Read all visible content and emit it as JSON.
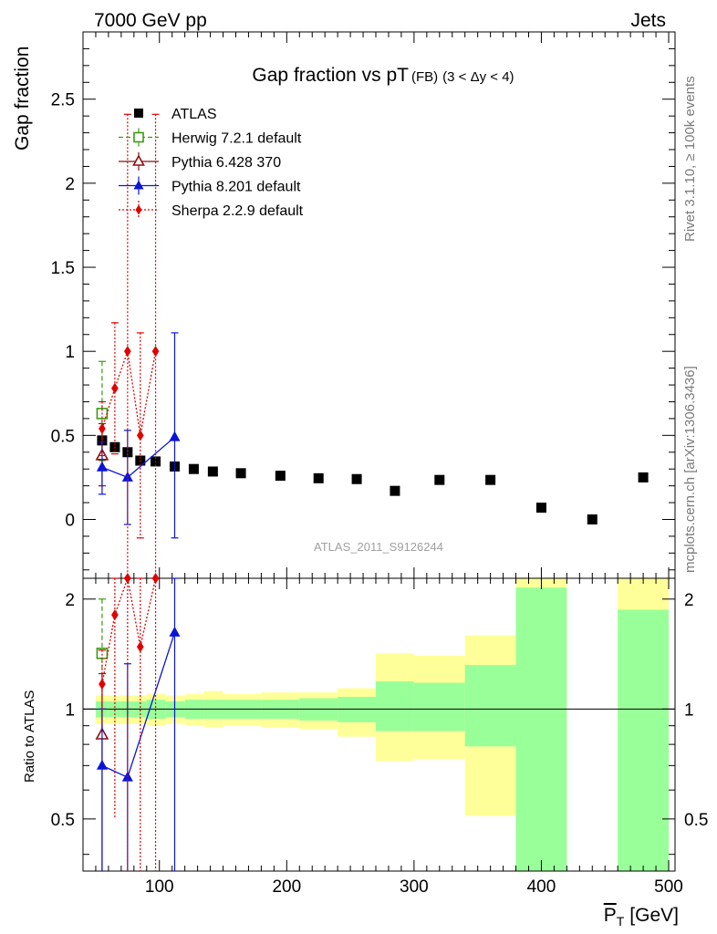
{
  "header": {
    "left": "7000 GeV pp",
    "right": "Jets",
    "side_top": "Rivet 3.1.10, ≥ 100k events",
    "side_bottom": "mcplots.cern.ch [arXiv:1306.3436]",
    "watermark": "ATLAS_2011_S9126244"
  },
  "chart_data": {
    "type": "scatter",
    "title_main": "Gap fraction vs pT",
    "title_sub": "(FB)",
    "title_range": "(3 < Δy < 4)",
    "xlabel": "P",
    "xlabel_sub": "T",
    "xlabel_unit": "[GeV]",
    "ylabel": "Gap fraction",
    "ratio_ylabel": "Ratio to ATLAS",
    "xlim": [
      40,
      505
    ],
    "ylim": [
      -0.35,
      2.9
    ],
    "ratio_ylim": [
      0.36,
      2.28
    ],
    "x_ticks": [
      100,
      200,
      300,
      400,
      500
    ],
    "y_ticks": [
      0,
      0.5,
      1,
      1.5,
      2,
      2.5
    ],
    "ratio_ticks": [
      0.5,
      1,
      2
    ],
    "legend_position": "top-left",
    "series": [
      {
        "name": "ATLAS",
        "color": "#000000",
        "marker": "square-filled",
        "points": [
          {
            "x": 55,
            "y": 0.47
          },
          {
            "x": 65,
            "y": 0.43
          },
          {
            "x": 75,
            "y": 0.4
          },
          {
            "x": 85,
            "y": 0.35
          },
          {
            "x": 97,
            "y": 0.345
          },
          {
            "x": 112,
            "y": 0.315
          },
          {
            "x": 127,
            "y": 0.3
          },
          {
            "x": 142,
            "y": 0.285
          },
          {
            "x": 164,
            "y": 0.275
          },
          {
            "x": 195,
            "y": 0.26
          },
          {
            "x": 225,
            "y": 0.245
          },
          {
            "x": 255,
            "y": 0.24
          },
          {
            "x": 285,
            "y": 0.17
          },
          {
            "x": 320,
            "y": 0.235
          },
          {
            "x": 360,
            "y": 0.235
          },
          {
            "x": 400,
            "y": 0.07
          },
          {
            "x": 440,
            "y": 0.0
          },
          {
            "x": 480,
            "y": 0.25
          }
        ]
      },
      {
        "name": "Herwig 7.2.1 default",
        "color": "#3a9a10",
        "marker": "square-open",
        "line": "dashed",
        "points": [
          {
            "x": 55,
            "y": 0.63,
            "lo": 0.35,
            "hi": 0.94
          }
        ],
        "ratio": [
          {
            "x": 55,
            "y": 1.42,
            "lo": 0.88,
            "hi": 2.0
          }
        ]
      },
      {
        "name": "Pythia 6.428 370",
        "color": "#8b1010",
        "marker": "triangle-open",
        "line": "solid",
        "points": [
          {
            "x": 55,
            "y": 0.38,
            "lo": 0.2,
            "hi": 0.57
          }
        ],
        "ratio": [
          {
            "x": 55,
            "y": 0.85,
            "lo": 0.36,
            "hi": 1.25
          }
        ]
      },
      {
        "name": "Pythia 8.201 default",
        "color": "#0a14d8",
        "marker": "triangle-filled",
        "line": "solid",
        "points": [
          {
            "x": 55,
            "y": 0.31,
            "lo": 0.15,
            "hi": 0.46
          },
          {
            "x": 75,
            "y": 0.25,
            "lo": -0.03,
            "hi": 0.53
          },
          {
            "x": 112,
            "y": 0.49,
            "lo": -0.11,
            "hi": 1.11
          }
        ],
        "ratio": [
          {
            "x": 55,
            "y": 0.7,
            "lo": 0.36,
            "hi": 1.0
          },
          {
            "x": 75,
            "y": 0.65,
            "lo": 0.36,
            "hi": 1.33
          },
          {
            "x": 112,
            "y": 1.62,
            "lo": 0.36,
            "hi": 2.28
          }
        ]
      },
      {
        "name": "Sherpa 2.2.9 default",
        "color": "#e00000",
        "marker": "diamond-filled",
        "line": "dotted",
        "points": [
          {
            "x": 55,
            "y": 0.54,
            "lo": 0.38,
            "hi": 0.7
          },
          {
            "x": 65,
            "y": 0.78,
            "lo": 0.39,
            "hi": 1.17
          },
          {
            "x": 75,
            "y": 1.0,
            "lo": -0.35,
            "hi": 2.41
          },
          {
            "x": 85,
            "y": 0.5,
            "lo": -0.11,
            "hi": 1.11
          },
          {
            "x": 97,
            "y": 1.0,
            "lo": -0.35,
            "hi": 2.41
          }
        ],
        "ratio": [
          {
            "x": 55,
            "y": 1.17,
            "lo": 0.9,
            "hi": 1.45
          },
          {
            "x": 65,
            "y": 1.81,
            "lo": 0.5,
            "hi": 2.28
          },
          {
            "x": 75,
            "y": 2.28,
            "lo": 0.36,
            "hi": 2.28
          },
          {
            "x": 85,
            "y": 1.48,
            "lo": 0.36,
            "hi": 2.28
          },
          {
            "x": 97,
            "y": 2.28,
            "lo": 0.36,
            "hi": 2.28
          }
        ]
      }
    ],
    "ratio_bands": [
      {
        "x0": 50,
        "x1": 60,
        "g_lo": 0.95,
        "g_hi": 1.05,
        "y_lo": 0.91,
        "y_hi": 1.09
      },
      {
        "x0": 60,
        "x1": 70,
        "g_lo": 0.95,
        "g_hi": 1.05,
        "y_lo": 0.91,
        "y_hi": 1.09
      },
      {
        "x0": 70,
        "x1": 80,
        "g_lo": 0.95,
        "g_hi": 1.05,
        "y_lo": 0.91,
        "y_hi": 1.09
      },
      {
        "x0": 80,
        "x1": 90,
        "g_lo": 0.95,
        "g_hi": 1.05,
        "y_lo": 0.91,
        "y_hi": 1.09
      },
      {
        "x0": 90,
        "x1": 105,
        "g_lo": 0.94,
        "g_hi": 1.06,
        "y_lo": 0.9,
        "y_hi": 1.1
      },
      {
        "x0": 105,
        "x1": 120,
        "g_lo": 0.95,
        "g_hi": 1.05,
        "y_lo": 0.91,
        "y_hi": 1.09
      },
      {
        "x0": 120,
        "x1": 135,
        "g_lo": 0.94,
        "g_hi": 1.06,
        "y_lo": 0.9,
        "y_hi": 1.1
      },
      {
        "x0": 135,
        "x1": 150,
        "g_lo": 0.94,
        "g_hi": 1.06,
        "y_lo": 0.89,
        "y_hi": 1.12
      },
      {
        "x0": 150,
        "x1": 180,
        "g_lo": 0.94,
        "g_hi": 1.06,
        "y_lo": 0.9,
        "y_hi": 1.1
      },
      {
        "x0": 180,
        "x1": 210,
        "g_lo": 0.94,
        "g_hi": 1.06,
        "y_lo": 0.89,
        "y_hi": 1.11
      },
      {
        "x0": 210,
        "x1": 240,
        "g_lo": 0.93,
        "g_hi": 1.07,
        "y_lo": 0.88,
        "y_hi": 1.11
      },
      {
        "x0": 240,
        "x1": 270,
        "g_lo": 0.92,
        "g_hi": 1.08,
        "y_lo": 0.84,
        "y_hi": 1.14
      },
      {
        "x0": 270,
        "x1": 300,
        "g_lo": 0.87,
        "g_hi": 1.19,
        "y_lo": 0.72,
        "y_hi": 1.42
      },
      {
        "x0": 300,
        "x1": 340,
        "g_lo": 0.87,
        "g_hi": 1.18,
        "y_lo": 0.73,
        "y_hi": 1.4
      },
      {
        "x0": 340,
        "x1": 380,
        "g_lo": 0.79,
        "g_hi": 1.32,
        "y_lo": 0.51,
        "y_hi": 1.59
      },
      {
        "x0": 380,
        "x1": 420,
        "g_lo": 0.36,
        "g_hi": 2.15,
        "y_lo": 0.36,
        "y_hi": 2.28
      },
      {
        "x0": 460,
        "x1": 500,
        "g_lo": 0.36,
        "g_hi": 1.87,
        "y_lo": 0.36,
        "y_hi": 2.28
      }
    ]
  }
}
